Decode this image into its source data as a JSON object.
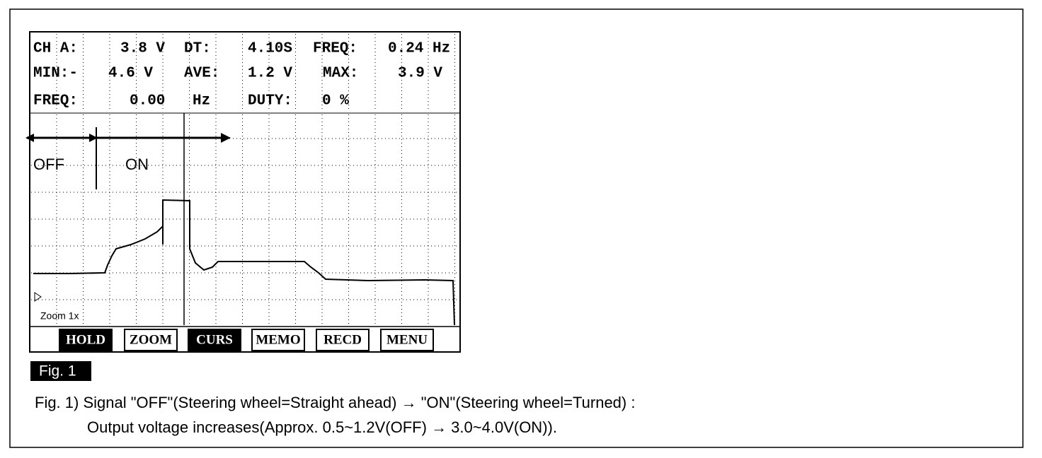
{
  "screen": {
    "readout": [
      [
        "CH A:",
        "3.8 V",
        "DT:",
        "4.10S",
        "FREQ:",
        "0.24 Hz"
      ],
      [
        "MIN:-",
        "4.6 V",
        "AVE:",
        "1.2 V",
        "MAX:",
        "3.9 V"
      ],
      [
        "FREQ:",
        "0.00",
        "Hz",
        "DUTY:",
        "0 %"
      ]
    ],
    "markers": [
      "OFF",
      "ON"
    ],
    "zoom": "Zoom 1x",
    "buttons": [
      "HOLD",
      "ZOOM",
      "CURS",
      "MEMO",
      "RECD",
      "MENU"
    ]
  },
  "figure": {
    "label": "Fig. 1",
    "caption": [
      "Fig. 1) Signal \"OFF\"(Steering wheel=Straight ahead) → \"ON\"(Steering wheel=Turned) :",
      "Output voltage increases(Approx. 0.5~1.2V(OFF) → 3.0~4.0V(ON))."
    ]
  }
}
